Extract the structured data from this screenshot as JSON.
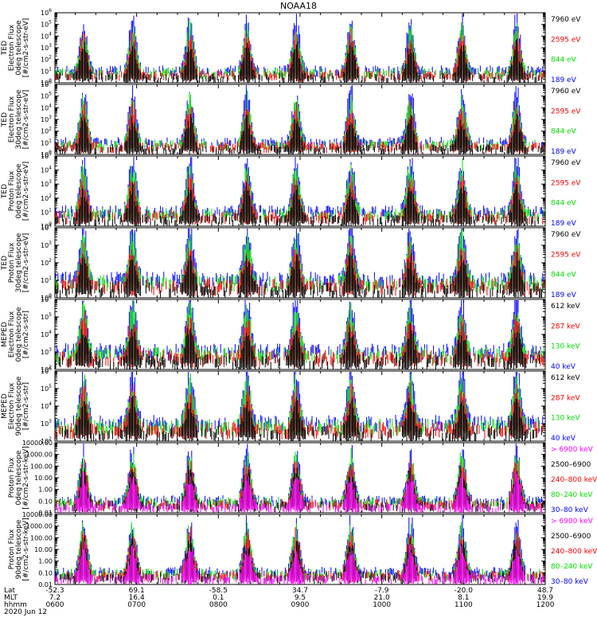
{
  "title": "NOAA18",
  "date_label": "2020 Jun 12",
  "colors": {
    "black": "#000000",
    "red": "#ff0000",
    "green": "#00e000",
    "blue": "#0000ff",
    "magenta": "#ff00ff"
  },
  "chart_data": {
    "type": "scatter",
    "title": "NOAA18",
    "x_axis": {
      "row_labels": [
        "Lat",
        "MLT",
        "hhmm"
      ],
      "ticks": [
        {
          "hhmm": "0600",
          "lat": "-52.3",
          "mlt": "7.2"
        },
        {
          "hhmm": "0700",
          "lat": "69.1",
          "mlt": "16.4"
        },
        {
          "hhmm": "0800",
          "lat": "-58.5",
          "mlt": "0.1"
        },
        {
          "hhmm": "0900",
          "lat": "34.7",
          "mlt": "9.5"
        },
        {
          "hhmm": "1000",
          "lat": "-7.9",
          "mlt": "21.0"
        },
        {
          "hhmm": "1100",
          "lat": "-20.0",
          "mlt": "8.1"
        },
        {
          "hhmm": "1200",
          "lat": "48.7",
          "mlt": "19.9"
        }
      ],
      "range_hours": [
        6,
        12
      ]
    },
    "panels": [
      {
        "ylabel": [
          "TED",
          "Electron Flux",
          "0deg telescope",
          "[#/cm2-s-str-eV]"
        ],
        "scale": "log",
        "ylim_exp": [
          0,
          6
        ],
        "ticks_exp": [
          0,
          1,
          2,
          3,
          4,
          5,
          6
        ],
        "tick_style": "power",
        "legend": [
          {
            "label": "7960 eV",
            "color": "#000000"
          },
          {
            "label": "2595 eV",
            "color": "#ff0000"
          },
          {
            "label": "844 eV",
            "color": "#00e000"
          },
          {
            "label": "189 eV",
            "color": "#0000ff"
          }
        ]
      },
      {
        "ylabel": [
          "TED",
          "Electron Flux",
          "30deg telescope",
          "[#/cm2-s-str-eV]"
        ],
        "scale": "log",
        "ylim_exp": [
          0,
          6
        ],
        "ticks_exp": [
          0,
          1,
          2,
          3,
          4,
          5,
          6
        ],
        "tick_style": "power",
        "legend": [
          {
            "label": "7960 eV",
            "color": "#000000"
          },
          {
            "label": "2595 eV",
            "color": "#ff0000"
          },
          {
            "label": "844 eV",
            "color": "#00e000"
          },
          {
            "label": "189 eV",
            "color": "#0000ff"
          }
        ]
      },
      {
        "ylabel": [
          "TED",
          "Proton Flux",
          "0deg telescope",
          "[#/cm2-s-str-eV]"
        ],
        "scale": "log",
        "ylim_exp": [
          0,
          5
        ],
        "ticks_exp": [
          0,
          1,
          2,
          3,
          4,
          5
        ],
        "tick_style": "power",
        "legend": [
          {
            "label": "7960 eV",
            "color": "#000000"
          },
          {
            "label": "2595 eV",
            "color": "#ff0000"
          },
          {
            "label": "844 eV",
            "color": "#00e000"
          },
          {
            "label": "189 eV",
            "color": "#0000ff"
          }
        ]
      },
      {
        "ylabel": [
          "TED",
          "Proton Flux",
          "30deg telescope",
          "[#/cm2-s-str-eV]"
        ],
        "scale": "log",
        "ylim_exp": [
          0,
          4
        ],
        "ticks_exp": [
          0,
          1,
          2,
          3,
          4
        ],
        "tick_style": "power",
        "legend": [
          {
            "label": "7960 eV",
            "color": "#000000"
          },
          {
            "label": "2595 eV",
            "color": "#ff0000"
          },
          {
            "label": "844 eV",
            "color": "#00e000"
          },
          {
            "label": "189 eV",
            "color": "#0000ff"
          }
        ]
      },
      {
        "ylabel": [
          "MEPED",
          "Electron Flux",
          "0deg telescope",
          "[#/cm2-s-str]"
        ],
        "scale": "log",
        "ylim_exp": [
          2,
          6
        ],
        "ticks_exp": [
          2,
          3,
          4,
          5,
          6
        ],
        "tick_style": "power",
        "legend": [
          {
            "label": "612 keV",
            "color": "#000000"
          },
          {
            "label": "287 keV",
            "color": "#ff0000"
          },
          {
            "label": "130 keV",
            "color": "#00e000"
          },
          {
            "label": "40 keV",
            "color": "#0000ff"
          }
        ]
      },
      {
        "ylabel": [
          "MEPED",
          "Electron Flux",
          "90deg telescope",
          "[#/cm2-s-str]"
        ],
        "scale": "log",
        "ylim_exp": [
          2,
          6
        ],
        "ticks_exp": [
          2,
          3,
          4,
          5,
          6
        ],
        "tick_style": "power",
        "legend": [
          {
            "label": "612 keV",
            "color": "#000000"
          },
          {
            "label": "287 keV",
            "color": "#ff0000"
          },
          {
            "label": "130 keV",
            "color": "#00e000"
          },
          {
            "label": "40 keV",
            "color": "#0000ff"
          }
        ]
      },
      {
        "ylabel": [
          "Proton Flux",
          "0deg telescope",
          "[#/cm2-s-str-keV]"
        ],
        "scale": "log",
        "ylim_exp": [
          -2,
          4
        ],
        "ticks_exp": [
          -2,
          -1,
          0,
          1,
          2,
          3,
          4
        ],
        "tick_style": "decimal",
        "tick_labels": [
          "0.01",
          "0.10",
          "1.00",
          "10.00",
          "100.00",
          "1000.00",
          "10000.00"
        ],
        "legend": [
          {
            "label": "> 6900 keV",
            "color": "#ff00ff"
          },
          {
            "label": "2500–6900",
            "color": "#000000"
          },
          {
            "label": "240–800 keV",
            "color": "#ff0000"
          },
          {
            "label": "80–240 keV",
            "color": "#00e000"
          },
          {
            "label": "30–80 keV",
            "color": "#0000ff"
          }
        ]
      },
      {
        "ylabel": [
          "Proton Flux",
          "90deg telescope",
          "[#/cm2-s-str-keV]"
        ],
        "scale": "log",
        "ylim_exp": [
          -2,
          4
        ],
        "ticks_exp": [
          -2,
          -1,
          0,
          1,
          2,
          3,
          4
        ],
        "tick_style": "decimal",
        "tick_labels": [
          "0.01",
          "0.10",
          "1.00",
          "10.00",
          "100.00",
          "1000.00",
          "10000.00"
        ],
        "legend": [
          {
            "label": "> 6900 keV",
            "color": "#ff00ff"
          },
          {
            "label": "2500–6900",
            "color": "#000000"
          },
          {
            "label": "240–800 keV",
            "color": "#ff0000"
          },
          {
            "label": "80–240 keV",
            "color": "#00e000"
          },
          {
            "label": "30–80 keV",
            "color": "#0000ff"
          }
        ]
      }
    ]
  }
}
